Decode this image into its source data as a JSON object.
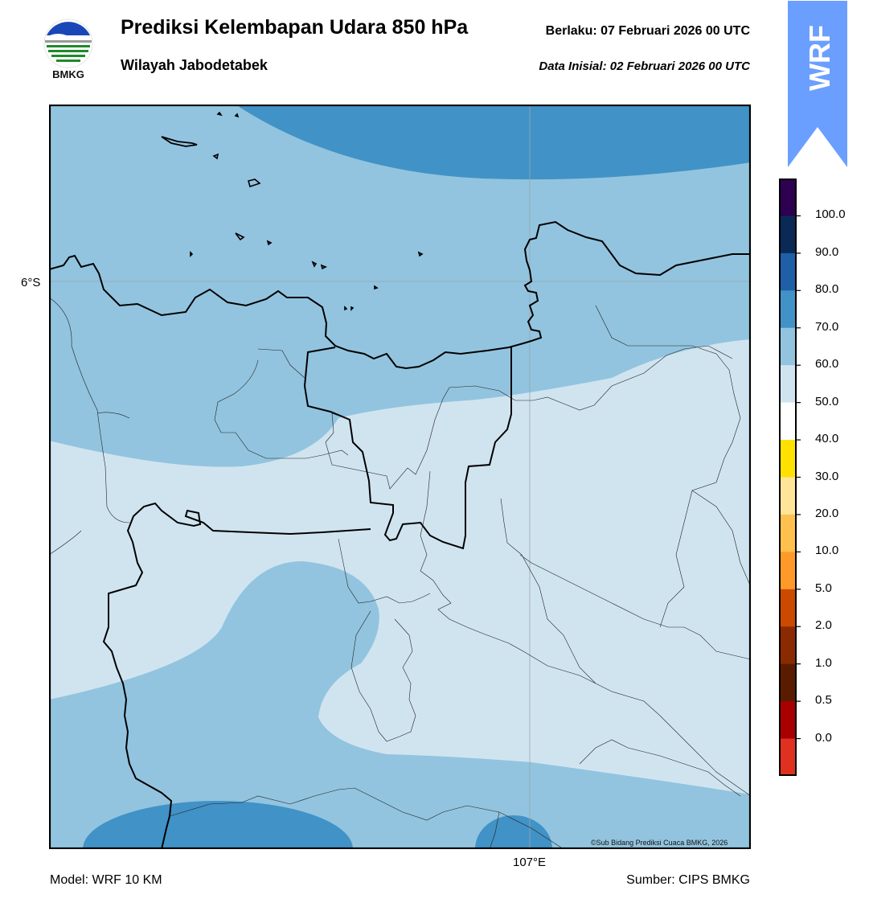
{
  "header": {
    "title": "Prediksi Kelembapan Udara 850 hPa",
    "subtitle": "Wilayah Jabodetabek",
    "valid_time": "Berlaku:  07 Februari 2026 00 UTC",
    "init_time": "Data Inisial:  02 Februari 2026 00 UTC"
  },
  "logo": {
    "text": "BMKG"
  },
  "badge": {
    "text": "WRF",
    "color": "#6b9fff"
  },
  "map": {
    "lat_label": "6°S",
    "lon_label": "107°E",
    "credit": "©Sub Bidang Prediksi Cuaca BMKG, 2026",
    "fill_colors": {
      "50-60": "#d0e4f0",
      "60-70": "#92c4df",
      "70-80": "#4192c6"
    }
  },
  "colorbar": {
    "labels": [
      "100.0",
      "90.0",
      "80.0",
      "70.0",
      "60.0",
      "50.0",
      "40.0",
      "30.0",
      "20.0",
      "10.0",
      "5.0",
      "2.0",
      "1.0",
      "0.5",
      "0.0"
    ],
    "colors": [
      "#2d0050",
      "#0a2a55",
      "#1e5fa8",
      "#4192c6",
      "#92c4df",
      "#d0e4f0",
      "#ffffff",
      "#ffe100",
      "#ffe49a",
      "#ffc04d",
      "#ff9a2a",
      "#cc4a00",
      "#8a2a00",
      "#5a1c00",
      "#a80000",
      "#e03020"
    ]
  },
  "footer": {
    "model": "Model: WRF 10 KM",
    "source": "Sumber: CIPS BMKG"
  }
}
